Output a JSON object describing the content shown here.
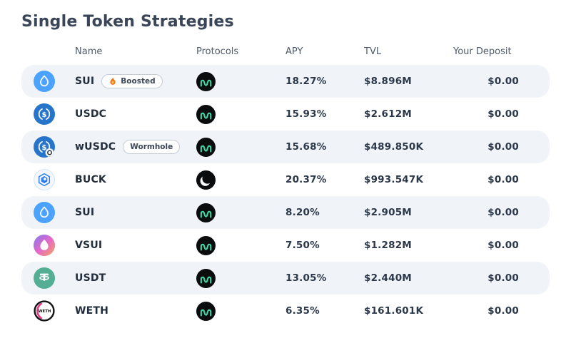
{
  "page": {
    "title": "Single Token Strategies"
  },
  "table": {
    "columns": [
      "Name",
      "Protocols",
      "APY",
      "TVL",
      "Your Deposit"
    ],
    "rows": [
      {
        "name": "SUI",
        "badge": "Boosted",
        "badge_icon": "flame",
        "token_icon": "sui",
        "protocol": "navi",
        "apy": "18.27%",
        "tvl": "$8.896M",
        "deposit": "$0.00"
      },
      {
        "name": "USDC",
        "badge": "",
        "badge_icon": "",
        "token_icon": "usdc",
        "protocol": "navi",
        "apy": "15.93%",
        "tvl": "$2.612M",
        "deposit": "$0.00"
      },
      {
        "name": "wUSDC",
        "badge": "Wormhole",
        "badge_icon": "",
        "token_icon": "wusdc",
        "protocol": "navi",
        "apy": "15.68%",
        "tvl": "$489.850K",
        "deposit": "$0.00"
      },
      {
        "name": "BUCK",
        "badge": "",
        "badge_icon": "",
        "token_icon": "buck",
        "protocol": "bucket",
        "apy": "20.37%",
        "tvl": "$993.547K",
        "deposit": "$0.00"
      },
      {
        "name": "SUI",
        "badge": "",
        "badge_icon": "",
        "token_icon": "sui",
        "protocol": "navi",
        "apy": "8.20%",
        "tvl": "$2.905M",
        "deposit": "$0.00"
      },
      {
        "name": "VSUI",
        "badge": "",
        "badge_icon": "",
        "token_icon": "vsui",
        "protocol": "navi",
        "apy": "7.50%",
        "tvl": "$1.282M",
        "deposit": "$0.00"
      },
      {
        "name": "USDT",
        "badge": "",
        "badge_icon": "",
        "token_icon": "usdt",
        "protocol": "navi",
        "apy": "13.05%",
        "tvl": "$2.440M",
        "deposit": "$0.00"
      },
      {
        "name": "WETH",
        "badge": "",
        "badge_icon": "",
        "token_icon": "weth",
        "protocol": "navi",
        "apy": "6.35%",
        "tvl": "$161.601K",
        "deposit": "$0.00"
      }
    ]
  },
  "colors": {
    "title_text": "#3A4557",
    "row_alt_bg": "#F0F4F9",
    "sui_blue": "#4CA3FF",
    "usdc_blue": "#2775CA",
    "usdt_teal": "#53AE94",
    "navi_green": "#41D7A4",
    "weth_pink": "#E8357F",
    "buck_blue": "#2E7CF6",
    "flame_orange": "#F67416"
  }
}
